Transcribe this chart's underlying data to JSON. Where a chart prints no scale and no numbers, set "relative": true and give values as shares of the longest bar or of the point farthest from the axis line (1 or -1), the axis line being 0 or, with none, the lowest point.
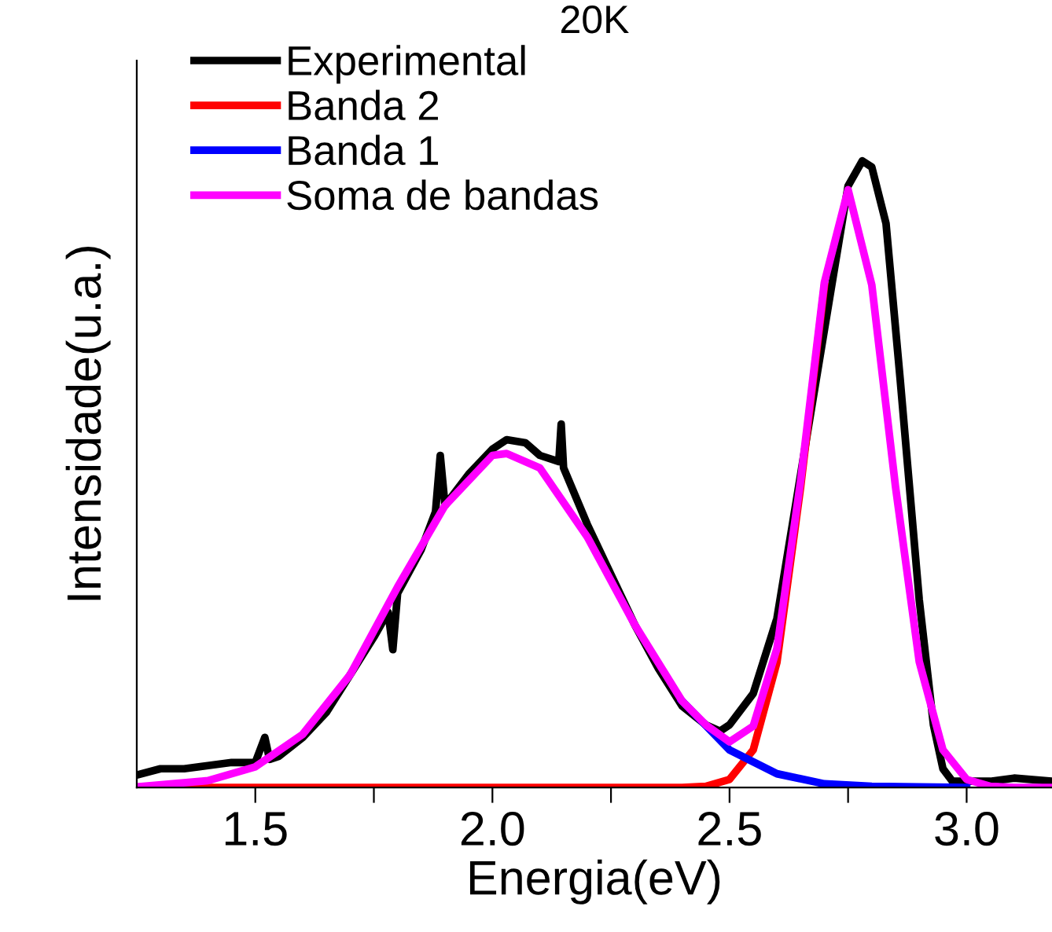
{
  "chart_data": {
    "type": "line",
    "title": "20K",
    "xlabel": "Energia(eV)",
    "ylabel": "Intensidade(u.a.)",
    "relative": true,
    "xlim": [
      1.25,
      3.18
    ],
    "xticks": [
      1.5,
      {
        "value": 1.75,
        "label": null
      },
      {
        "value": 2,
        "label": "2.0"
      },
      {
        "value": 2.25,
        "label": null
      },
      2.5,
      {
        "value": 2.75,
        "label": null
      },
      {
        "value": 3,
        "label": "3.0"
      }
    ],
    "tick_labels": "x",
    "grid": false,
    "legend": "top left",
    "marker": "none",
    "line_style": "solid",
    "series": [
      {
        "name": "Experimental",
        "color": "#000000",
        "x": [
          1.25,
          1.3,
          1.35,
          1.4,
          1.45,
          1.5,
          1.52,
          1.53,
          1.55,
          1.6,
          1.65,
          1.7,
          1.75,
          1.78,
          1.79,
          1.8,
          1.85,
          1.88,
          1.89,
          1.9,
          1.95,
          2.0,
          2.03,
          2.07,
          2.1,
          2.14,
          2.145,
          2.15,
          2.2,
          2.25,
          2.3,
          2.35,
          2.4,
          2.45,
          2.48,
          2.5,
          2.55,
          2.6,
          2.65,
          2.75,
          2.78,
          2.8,
          2.83,
          2.86,
          2.9,
          2.93,
          2.95,
          2.97,
          3.0,
          3.05,
          3.1,
          3.18
        ],
        "values": [
          0.02,
          0.03,
          0.03,
          0.035,
          0.04,
          0.04,
          0.08,
          0.045,
          0.05,
          0.08,
          0.12,
          0.18,
          0.24,
          0.28,
          0.22,
          0.31,
          0.38,
          0.44,
          0.53,
          0.45,
          0.5,
          0.54,
          0.555,
          0.55,
          0.53,
          0.52,
          0.58,
          0.51,
          0.42,
          0.34,
          0.26,
          0.19,
          0.13,
          0.1,
          0.09,
          0.1,
          0.15,
          0.27,
          0.5,
          0.96,
          1.0,
          0.99,
          0.9,
          0.65,
          0.3,
          0.1,
          0.03,
          0.01,
          0.01,
          0.01,
          0.015,
          0.01
        ]
      },
      {
        "name": "Banda 2",
        "color": "#ff0000",
        "x": [
          1.25,
          1.5,
          2.0,
          2.4,
          2.45,
          2.5,
          2.55,
          2.6,
          2.65,
          2.7
        ],
        "values": [
          0,
          0,
          0,
          0,
          0.002,
          0.013,
          0.06,
          0.2,
          0.48,
          0.8
        ]
      },
      {
        "name": "Banda 1",
        "color": "#0000ff",
        "x": [
          2.4,
          2.5,
          2.6,
          2.7,
          2.8,
          2.9,
          3.0
        ],
        "values": [
          0.138,
          0.06,
          0.022,
          0.006,
          0.002,
          0.001,
          0
        ]
      },
      {
        "name": "Soma de bandas",
        "color": "#ff00ff",
        "x": [
          1.25,
          1.4,
          1.5,
          1.6,
          1.7,
          1.8,
          1.9,
          2.0,
          2.03,
          2.1,
          2.2,
          2.3,
          2.4,
          2.45,
          2.5,
          2.55,
          2.6,
          2.65,
          2.7,
          2.75,
          2.8,
          2.85,
          2.9,
          2.95,
          3.0,
          3.05,
          3.1,
          3.18
        ],
        "values": [
          0.001,
          0.011,
          0.033,
          0.085,
          0.18,
          0.32,
          0.45,
          0.53,
          0.533,
          0.51,
          0.4,
          0.26,
          0.138,
          0.1,
          0.073,
          0.098,
          0.222,
          0.49,
          0.806,
          0.954,
          0.802,
          0.48,
          0.201,
          0.06,
          0.013,
          0.002,
          0,
          0
        ]
      }
    ]
  }
}
